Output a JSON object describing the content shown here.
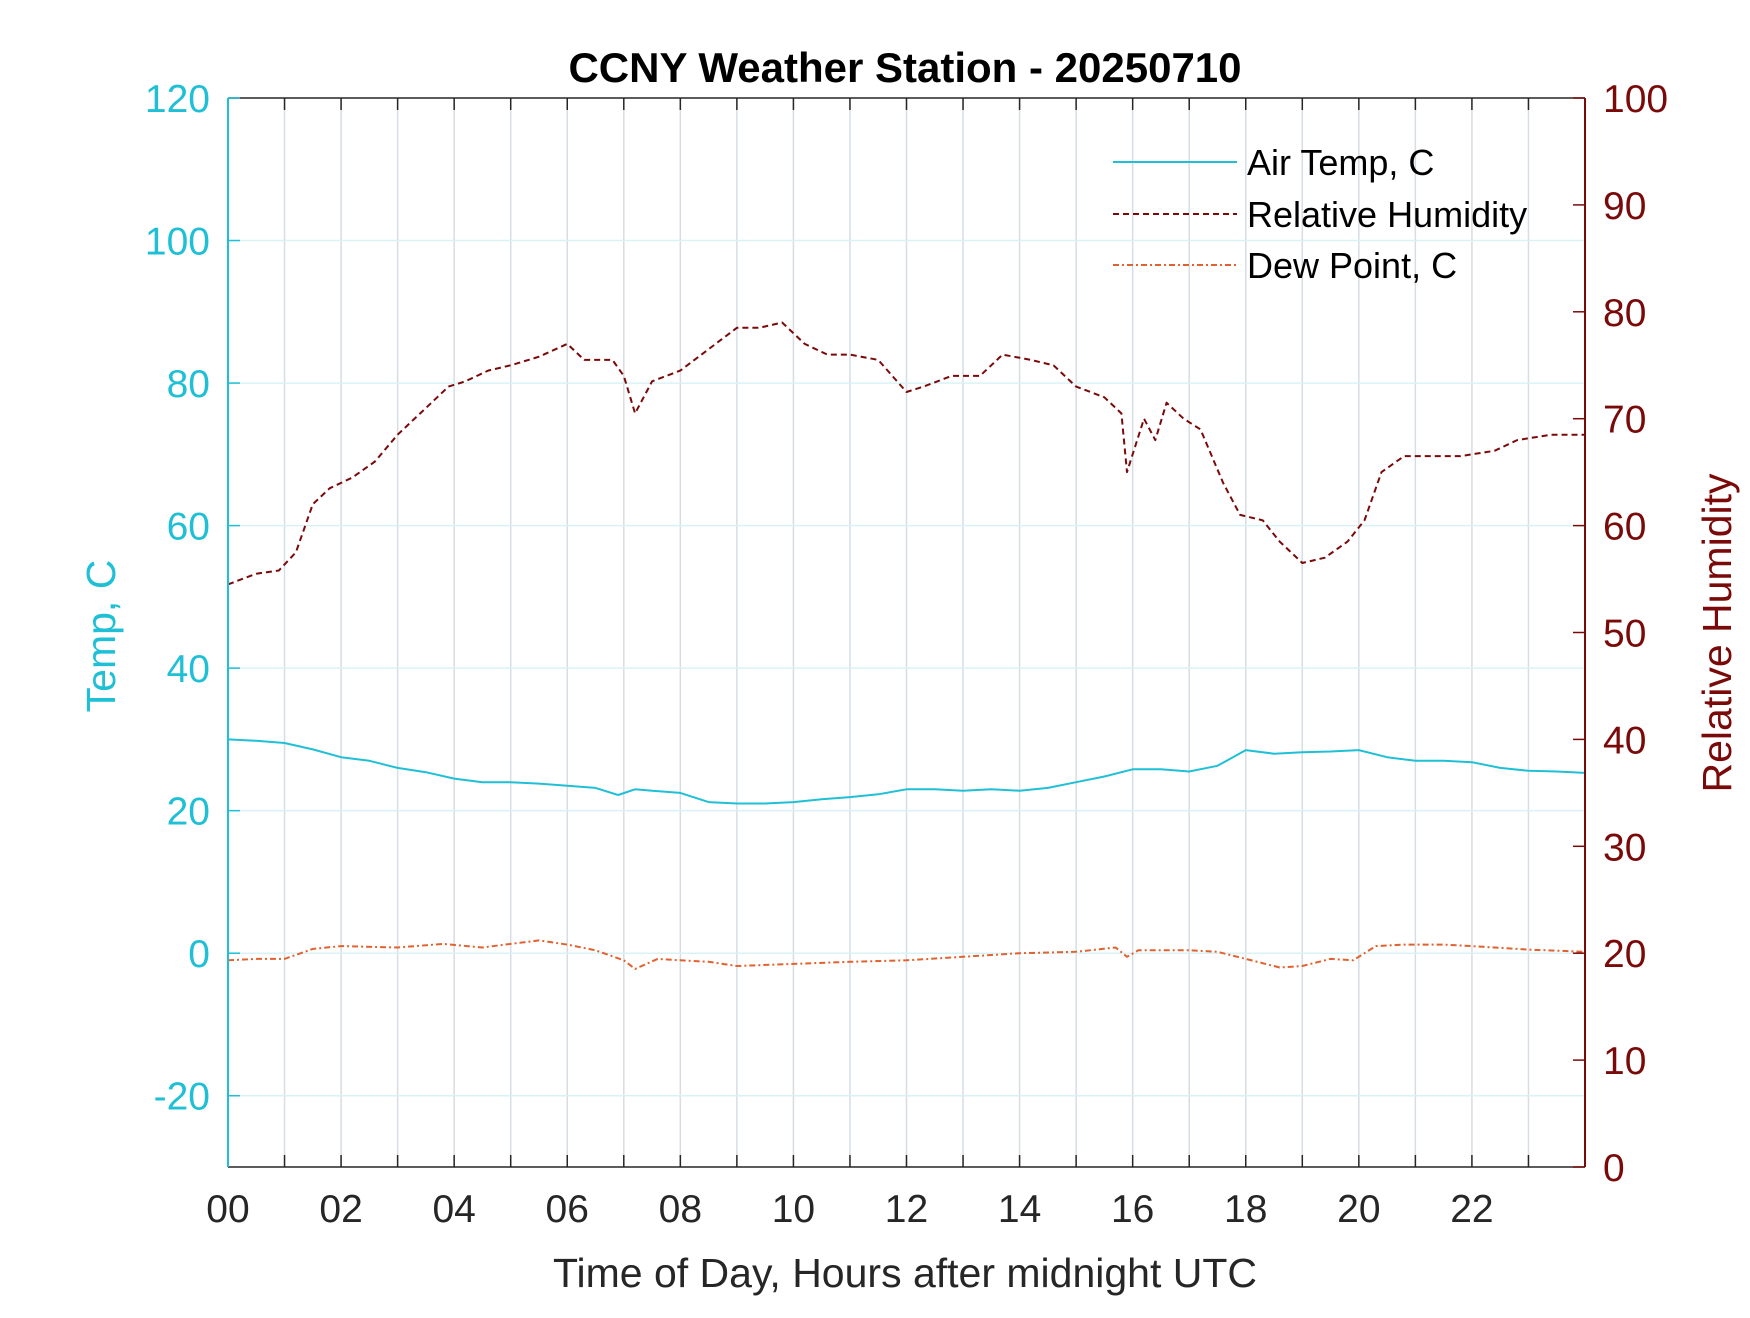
{
  "chart_data": {
    "type": "line",
    "title": "CCNY Weather Station - 20250710",
    "xlabel": "Time of Day, Hours after midnight UTC",
    "ylabel_left": "Temp, C",
    "ylabel_right": "Relative Humidity",
    "xlim": [
      0,
      24
    ],
    "ylim_left": [
      -30,
      120
    ],
    "ylim_right": [
      0,
      100
    ],
    "x_ticks": [
      0,
      2,
      4,
      6,
      8,
      10,
      12,
      14,
      16,
      18,
      20,
      22
    ],
    "x_tick_labels": [
      "00",
      "02",
      "04",
      "06",
      "08",
      "10",
      "12",
      "14",
      "16",
      "18",
      "20",
      "22"
    ],
    "y_left_ticks": [
      120,
      100,
      80,
      60,
      40,
      20,
      0,
      -20
    ],
    "y_left_tick_labels": [
      "120",
      "100",
      "80",
      "60",
      "40",
      "20",
      "0",
      "-20"
    ],
    "y_right_ticks": [
      100,
      90,
      80,
      70,
      60,
      50,
      40,
      30,
      20,
      10,
      0
    ],
    "y_right_tick_labels": [
      "100",
      "90",
      "80",
      "70",
      "60",
      "50",
      "40",
      "30",
      "20",
      "10",
      "0"
    ],
    "grid": true,
    "legend_position": "top-right",
    "colors": {
      "air_temp": "#1fc0d6",
      "humidity": "#7a0a0a",
      "dew_point": "#e0622f",
      "left_axis": "#1fc0d6",
      "right_axis": "#7a0a0a",
      "grid": "#d6dde3"
    },
    "series": [
      {
        "name": "Air Temp, C",
        "axis": "left",
        "style": "solid",
        "x": [
          0,
          0.5,
          1,
          1.5,
          2,
          2.5,
          3,
          3.5,
          4,
          4.5,
          5,
          5.5,
          6,
          6.5,
          6.9,
          7.2,
          7.5,
          8,
          8.5,
          9,
          9.5,
          10,
          10.5,
          11,
          11.5,
          12,
          12.5,
          13,
          13.5,
          14,
          14.5,
          15,
          15.5,
          16,
          16.5,
          17,
          17.5,
          18,
          18.5,
          19,
          19.5,
          20,
          20.5,
          21,
          21.5,
          22,
          22.5,
          23,
          23.5,
          24
        ],
        "values": [
          30,
          29.8,
          29.5,
          28.6,
          27.5,
          27,
          26,
          25.4,
          24.5,
          24,
          24,
          23.8,
          23.5,
          23.2,
          22.2,
          23,
          22.8,
          22.5,
          21.2,
          21,
          21,
          21.2,
          21.6,
          21.9,
          22.3,
          23,
          23,
          22.8,
          23,
          22.8,
          23.2,
          24,
          24.8,
          25.8,
          25.8,
          25.5,
          26.3,
          28.5,
          28,
          28.2,
          28.3,
          28.5,
          27.5,
          27,
          27,
          26.8,
          26,
          25.6,
          25.5,
          25.3
        ]
      },
      {
        "name": "Relative Humidity",
        "axis": "right",
        "style": "dashed",
        "x": [
          0,
          0.5,
          0.9,
          1.2,
          1.5,
          1.8,
          2.2,
          2.6,
          3,
          3.5,
          3.9,
          4.2,
          4.6,
          5,
          5.5,
          6,
          6.3,
          6.8,
          7,
          7.2,
          7.5,
          8,
          8.5,
          9,
          9.4,
          9.8,
          10.2,
          10.6,
          11,
          11.5,
          12,
          12.3,
          12.8,
          13.3,
          13.7,
          14.2,
          14.6,
          15,
          15.5,
          15.8,
          15.9,
          16.2,
          16.4,
          16.6,
          16.9,
          17.2,
          17.6,
          17.9,
          18.3,
          18.6,
          19,
          19.4,
          19.8,
          20.1,
          20.4,
          20.8,
          21.2,
          21.8,
          22.4,
          22.8,
          23.4,
          24
        ],
        "values": [
          54.5,
          55.5,
          55.8,
          57.5,
          62,
          63.5,
          64.5,
          66,
          68.5,
          71,
          73,
          73.5,
          74.5,
          75,
          75.8,
          77,
          75.5,
          75.5,
          74,
          70.5,
          73.5,
          74.5,
          76.5,
          78.5,
          78.5,
          79,
          77,
          76,
          76,
          75.5,
          72.5,
          73,
          74,
          74,
          76,
          75.5,
          75,
          73,
          72,
          70.5,
          65,
          70,
          68,
          71.5,
          70,
          69,
          64,
          61,
          60.5,
          58.5,
          56.5,
          57,
          58.5,
          60.5,
          65,
          66.5,
          66.5,
          66.5,
          67,
          68,
          68.5,
          68.5
        ]
      },
      {
        "name": "Dew Point, C",
        "axis": "left",
        "style": "dashdot",
        "x": [
          0,
          0.5,
          1,
          1.5,
          2,
          3,
          3.8,
          4.5,
          5,
          5.5,
          6,
          6.5,
          7,
          7.2,
          7.6,
          8,
          8.5,
          9,
          10,
          11,
          12,
          13,
          14,
          15,
          15.7,
          15.9,
          16.1,
          16.5,
          17,
          17.5,
          18,
          18.6,
          19,
          19.5,
          19.9,
          20.3,
          20.8,
          21.5,
          22,
          23,
          24
        ],
        "values": [
          -1,
          -0.8,
          -0.8,
          0.6,
          1,
          0.8,
          1.3,
          0.8,
          1.3,
          1.8,
          1.2,
          0.4,
          -1,
          -2.2,
          -0.8,
          -1,
          -1.2,
          -1.8,
          -1.5,
          -1.2,
          -1,
          -0.5,
          0,
          0.2,
          0.8,
          -0.5,
          0.4,
          0.4,
          0.4,
          0.2,
          -0.8,
          -2,
          -1.8,
          -0.8,
          -1,
          1,
          1.2,
          1.2,
          1,
          0.5,
          0.2
        ]
      }
    ]
  }
}
